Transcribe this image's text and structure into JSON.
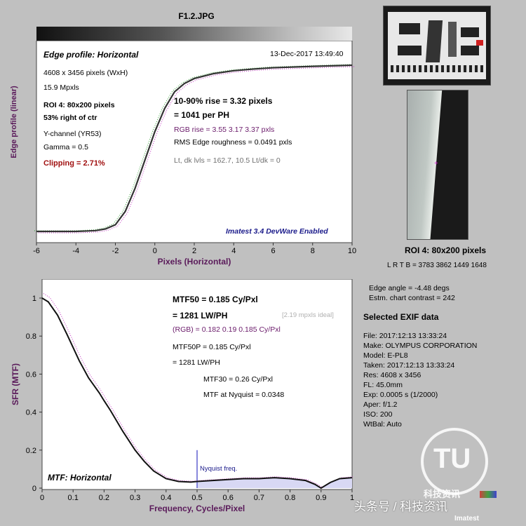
{
  "file_title": "F1.2.JPG",
  "edge": {
    "panel_title": "Edge profile: Horizontal",
    "timestamp": "13-Dec-2017 13:49:40",
    "info": [
      "4608 x 3456 pixels (WxH)",
      "15.9 Mpxls"
    ],
    "roi": "ROI 4:  80x200 pixels",
    "roi_pos": "53% right of ctr",
    "channel": "Y-channel  (YR53)",
    "gamma": "Gamma = 0.5",
    "clipping": "Clipping =   2.71%",
    "rise1": "10-90% rise = 3.32 pixels",
    "rise2": "= 1041 per PH",
    "rgb_rise": "RGB rise = 3.55  3.17  3.37 pxls",
    "roughness": "RMS Edge roughness = 0.0491 pxls",
    "levels": "Lt, dk lvls = 162.7, 10.5   Lt/dk = 0",
    "watermark": "Imatest 3.4 DevWare Enabled",
    "ylabel": "Edge profile (linear)",
    "xlabel": "Pixels (Horizontal)"
  },
  "mtf": {
    "panel_title": "MTF: Horizontal",
    "mtf50_1": "MTF50 = 0.185 Cy/Pxl",
    "mtf50_2": "= 1281 LW/PH",
    "ideal": "[2.19 mpxls ideal]",
    "rgb": "(RGB) = 0.182  0.19  0.185 Cy/Pxl",
    "mtf50p_1": "MTF50P = 0.185 Cy/Pxl",
    "mtf50p_2": "= 1281 LW/PH",
    "mtf30": "MTF30 = 0.26 Cy/Pxl",
    "nyq_val": "MTF at Nyquist = 0.0348",
    "nyq_label": "Nyquist freq.",
    "ylabel": "SFR (MTF)",
    "xlabel": "Frequency, Cycles/Pixel"
  },
  "right": {
    "roi_title": "ROI 4:  80x200 pixels",
    "lrtb": "L R  T B = 3783 3862  1449 1648",
    "edge_angle": "Edge angle = -4.48 degs",
    "contrast": "Estm. chart contrast = 242",
    "exif_title": "Selected EXIF data",
    "exif": [
      "File:  2017:12:13 13:33:24",
      "Make:  OLYMPUS CORPORATION",
      "Model:  E-PL8",
      "Taken: 2017:12:13 13:33:24",
      "Res:   4608 x 3456",
      "FL:     45.0mm",
      "Exp:    0.0005 s  (1/2000)",
      "Aper:   f/1.2",
      "ISO:    200",
      "WtBal: Auto"
    ],
    "logo_text": "科技资讯",
    "logo_sub": "Imatest"
  },
  "footer_watermark": "头条号 / 科技资讯",
  "chart_data": [
    {
      "type": "line",
      "title": "Edge profile: Horizontal",
      "xlabel": "Pixels (Horizontal)",
      "ylabel": "Edge profile (linear)",
      "xlim": [
        -6,
        10
      ],
      "ylim": [
        0,
        1
      ],
      "xticks": [
        -6,
        -4,
        -2,
        0,
        2,
        4,
        6,
        8,
        10
      ],
      "series": [
        {
          "x": [
            -6,
            -4,
            -3,
            -2.5,
            -2,
            -1.5,
            -1,
            -0.5,
            0,
            0.5,
            1,
            1.5,
            2,
            3,
            4,
            5,
            6,
            8,
            10
          ],
          "values": [
            0,
            0.0,
            0.005,
            0.015,
            0.04,
            0.12,
            0.26,
            0.43,
            0.6,
            0.74,
            0.84,
            0.89,
            0.92,
            0.95,
            0.967,
            0.977,
            0.985,
            0.993,
            1.0
          ]
        }
      ]
    },
    {
      "type": "line",
      "title": "MTF: Horizontal",
      "xlabel": "Frequency, Cycles/Pixel",
      "ylabel": "SFR (MTF)",
      "xlim": [
        0,
        1
      ],
      "ylim": [
        0,
        1
      ],
      "xticks": [
        0,
        0.1,
        0.2,
        0.3,
        0.4,
        0.5,
        0.6,
        0.7,
        0.8,
        0.9,
        1
      ],
      "yticks": [
        0,
        0.2,
        0.4,
        0.6,
        0.8,
        1
      ],
      "nyquist": 0.5,
      "series": [
        {
          "x": [
            0,
            0.02,
            0.05,
            0.08,
            0.1,
            0.12,
            0.15,
            0.185,
            0.2,
            0.22,
            0.26,
            0.3,
            0.33,
            0.36,
            0.4,
            0.44,
            0.48,
            0.5,
            0.55,
            0.6,
            0.65,
            0.7,
            0.75,
            0.8,
            0.85,
            0.88,
            0.9,
            0.93,
            0.96,
            1.0
          ],
          "values": [
            1.0,
            0.98,
            0.91,
            0.81,
            0.74,
            0.67,
            0.58,
            0.5,
            0.46,
            0.41,
            0.3,
            0.2,
            0.14,
            0.09,
            0.05,
            0.035,
            0.032,
            0.035,
            0.04,
            0.045,
            0.05,
            0.05,
            0.055,
            0.05,
            0.04,
            0.02,
            0.0,
            0.03,
            0.05,
            0.055
          ]
        }
      ]
    }
  ]
}
